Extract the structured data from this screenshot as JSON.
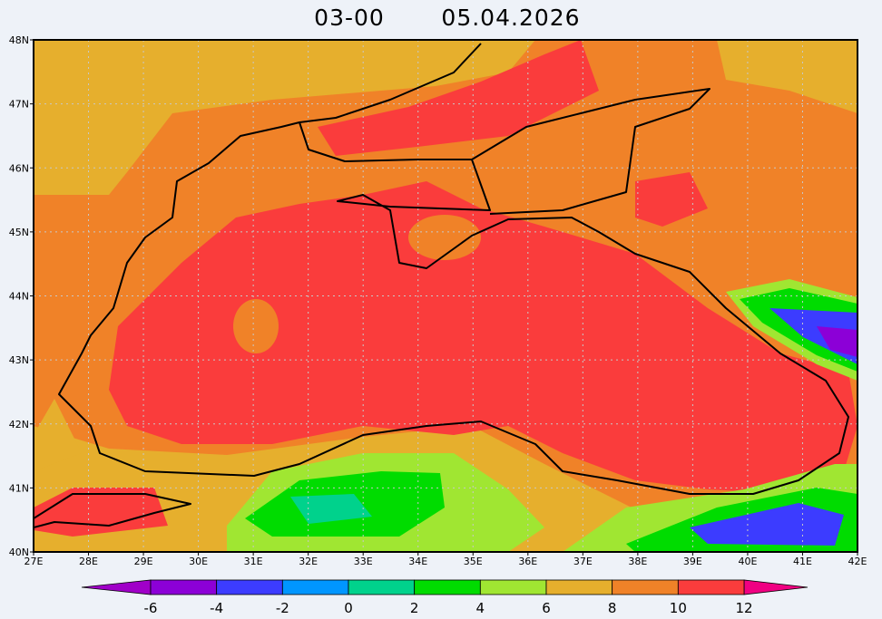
{
  "header": {
    "time": "03-00",
    "date": "05.04.2026"
  },
  "map": {
    "lon_lim": [
      27,
      42
    ],
    "lat_lim": [
      40,
      48
    ],
    "lon_ticks": [
      {
        "value": 27,
        "label": "27E"
      },
      {
        "value": 28,
        "label": "28E"
      },
      {
        "value": 29,
        "label": "29E"
      },
      {
        "value": 30,
        "label": "30E"
      },
      {
        "value": 31,
        "label": "31E"
      },
      {
        "value": 32,
        "label": "32E"
      },
      {
        "value": 33,
        "label": "33E"
      },
      {
        "value": 34,
        "label": "34E"
      },
      {
        "value": 35,
        "label": "35E"
      },
      {
        "value": 36,
        "label": "36E"
      },
      {
        "value": 37,
        "label": "37E"
      },
      {
        "value": 38,
        "label": "38E"
      },
      {
        "value": 39,
        "label": "39E"
      },
      {
        "value": 40,
        "label": "40E"
      },
      {
        "value": 41,
        "label": "41E"
      },
      {
        "value": 42,
        "label": "42E"
      }
    ],
    "lat_ticks": [
      {
        "value": 40,
        "label": "40N"
      },
      {
        "value": 41,
        "label": "41N"
      },
      {
        "value": 42,
        "label": "42N"
      },
      {
        "value": 43,
        "label": "43N"
      },
      {
        "value": 44,
        "label": "44N"
      },
      {
        "value": 45,
        "label": "45N"
      },
      {
        "value": 46,
        "label": "46N"
      },
      {
        "value": 47,
        "label": "47N"
      },
      {
        "value": 48,
        "label": "48N"
      }
    ],
    "grid": true
  },
  "colorbar": {
    "ticks": [
      -6,
      -4,
      -2,
      0,
      2,
      4,
      6,
      8,
      10,
      12
    ],
    "colors": [
      "#8c00d7",
      "#3c3cff",
      "#0096ff",
      "#00d28c",
      "#00dc00",
      "#a0e632",
      "#e6af2d",
      "#f08228",
      "#fa3c3c"
    ],
    "under_color": "#a000c8",
    "over_color": "#f00082"
  }
}
